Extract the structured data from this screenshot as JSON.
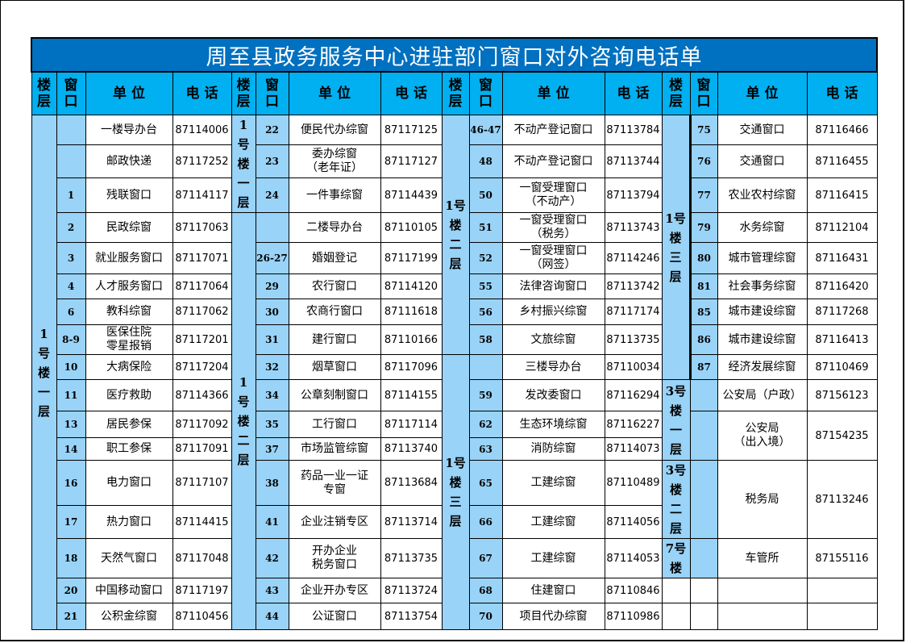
{
  "title": "周至县政务服务中心进驻部门窗口对外咨询电话单",
  "headers": {
    "floor": "楼层",
    "window": "窗口",
    "unit": "单 位",
    "phone": "电 话"
  },
  "colors": {
    "title_bg": "#0070c0",
    "header_bg": "#00b0f0",
    "label_bg": "#99d3f7"
  },
  "sections": [
    {
      "floors": [
        {
          "label": "1号楼一层",
          "span": 17
        }
      ],
      "entries": [
        {
          "window": "",
          "unit": "一楼导办台",
          "phone": "87114006"
        },
        {
          "window": "",
          "unit": "邮政快递",
          "phone": "87117252"
        },
        {
          "window": "1",
          "unit": "残联窗口",
          "phone": "87114117"
        },
        {
          "window": "2",
          "unit": "民政综窗",
          "phone": "87117063"
        },
        {
          "window": "3",
          "unit": "就业服务窗口",
          "phone": "87117071"
        },
        {
          "window": "4",
          "unit": "人才服务窗口",
          "phone": "87117064"
        },
        {
          "window": "6",
          "unit": "教科综窗",
          "phone": "87117062"
        },
        {
          "window": "8-9",
          "unit": "医保住院\n零星报销",
          "phone": "87117201"
        },
        {
          "window": "10",
          "unit": "大病保险",
          "phone": "87117204"
        },
        {
          "window": "11",
          "unit": "医疗救助",
          "phone": "87114366"
        },
        {
          "window": "13",
          "unit": "居民参保",
          "phone": "87117092"
        },
        {
          "window": "14",
          "unit": "职工参保",
          "phone": "87117091"
        },
        {
          "window": "16",
          "unit": "电力窗口",
          "phone": "87117107"
        },
        {
          "window": "17",
          "unit": "热力窗口",
          "phone": "87114415"
        },
        {
          "window": "18",
          "unit": "天然气窗口",
          "phone": "87117048"
        },
        {
          "window": "20",
          "unit": "中国移动窗口",
          "phone": "87117197"
        },
        {
          "window": "21",
          "unit": "公积金综窗",
          "phone": "87110456"
        }
      ]
    },
    {
      "floors": [
        {
          "label": "1号楼一层",
          "span": 3
        },
        {
          "label": "1号楼二层",
          "span": 14
        }
      ],
      "entries": [
        {
          "window": "22",
          "unit": "便民代办综窗",
          "phone": "87117125"
        },
        {
          "window": "23",
          "unit": "委办综窗\n（老年证）",
          "phone": "87117127"
        },
        {
          "window": "24",
          "unit": "一件事综窗",
          "phone": "87114439"
        },
        {
          "window": "",
          "unit": "二楼导办台",
          "phone": "87110105"
        },
        {
          "window": "26-27",
          "unit": "婚姻登记",
          "phone": "87117199"
        },
        {
          "window": "29",
          "unit": "农行窗口",
          "phone": "87114120"
        },
        {
          "window": "30",
          "unit": "农商行窗口",
          "phone": "87111618"
        },
        {
          "window": "31",
          "unit": "建行窗口",
          "phone": "87110166"
        },
        {
          "window": "32",
          "unit": "烟草窗口",
          "phone": "87117096"
        },
        {
          "window": "34",
          "unit": "公章刻制窗口",
          "phone": "87114155"
        },
        {
          "window": "35",
          "unit": "工行窗口",
          "phone": "87117114"
        },
        {
          "window": "37",
          "unit": "市场监管综窗",
          "phone": "87113740"
        },
        {
          "window": "38",
          "unit": "药品一业一证\n专窗",
          "phone": "87113684"
        },
        {
          "window": "41",
          "unit": "企业注销专区",
          "phone": "87113714"
        },
        {
          "window": "42",
          "unit": "开办企业\n税务窗口",
          "phone": "87113735"
        },
        {
          "window": "43",
          "unit": "企业开办专区",
          "phone": "87113724"
        },
        {
          "window": "44",
          "unit": "公证窗口",
          "phone": "87113754"
        }
      ]
    },
    {
      "floors": [
        {
          "label": "1号楼二层",
          "span": 8
        },
        {
          "label": "1号楼三层",
          "span": 9
        }
      ],
      "entries": [
        {
          "window": "46-47",
          "unit": "不动产登记窗口",
          "phone": "87113784"
        },
        {
          "window": "48",
          "unit": "不动产登记窗口",
          "phone": "87113744"
        },
        {
          "window": "50",
          "unit": "一窗受理窗口\n（不动产）",
          "phone": "87113794"
        },
        {
          "window": "51",
          "unit": "一窗受理窗口\n（税务）",
          "phone": "87113743"
        },
        {
          "window": "52",
          "unit": "一窗受理窗口\n（网签）",
          "phone": "87114246"
        },
        {
          "window": "55",
          "unit": "法律咨询窗口",
          "phone": "87113742"
        },
        {
          "window": "56",
          "unit": "乡村振兴综窗",
          "phone": "87117174"
        },
        {
          "window": "58",
          "unit": "文旅综窗",
          "phone": "87113735"
        },
        {
          "window": "",
          "unit": "三楼导办台",
          "phone": "87110034"
        },
        {
          "window": "59",
          "unit": "发改委窗口",
          "phone": "87116294"
        },
        {
          "window": "62",
          "unit": "生态环境综窗",
          "phone": "87116227"
        },
        {
          "window": "63",
          "unit": "消防综窗",
          "phone": "87114073"
        },
        {
          "window": "65",
          "unit": "工建综窗",
          "phone": "87110489"
        },
        {
          "window": "66",
          "unit": "工建综窗",
          "phone": "87114056"
        },
        {
          "window": "67",
          "unit": "工建综窗",
          "phone": "87114053"
        },
        {
          "window": "68",
          "unit": "住建窗口",
          "phone": "87110846"
        },
        {
          "window": "70",
          "unit": "项目代办综窗",
          "phone": "87110986"
        }
      ]
    },
    {
      "floors": [
        {
          "label": "1号楼三层",
          "span": 9
        },
        {
          "label": "3号楼一层",
          "span": 3
        },
        {
          "label": "3号楼二层",
          "span": 2
        },
        {
          "label": "7号楼",
          "span": 1
        },
        {
          "label": "",
          "span": 1,
          "blank": true
        },
        {
          "label": "",
          "span": 1,
          "blank": true
        }
      ],
      "entries": [
        {
          "window": "75",
          "unit": "交通窗口",
          "phone": "87116466"
        },
        {
          "window": "76",
          "unit": "交通窗口",
          "phone": "87116455"
        },
        {
          "window": "77",
          "unit": "农业农村综窗",
          "phone": "87116415"
        },
        {
          "window": "79",
          "unit": "水务综窗",
          "phone": "87112104"
        },
        {
          "window": "80",
          "unit": "城市管理综窗",
          "phone": "87116431"
        },
        {
          "window": "81",
          "unit": "社会事务综窗",
          "phone": "87116420"
        },
        {
          "window": "85",
          "unit": "城市建设综窗",
          "phone": "87117268"
        },
        {
          "window": "86",
          "unit": "城市建设综窗",
          "phone": "87116413"
        },
        {
          "window": "87",
          "unit": "经济发展综窗",
          "phone": "87110469"
        },
        {
          "window": "",
          "unit": "公安局（户政）",
          "phone": "87156123"
        },
        {
          "window": "",
          "unit": "公安局\n（出入境）",
          "phone": "87154235",
          "span": 2
        },
        {
          "window": "",
          "unit": "税务局",
          "phone": "87113246",
          "span": 2
        },
        {
          "window": "",
          "unit": "车管所",
          "phone": "87155116"
        },
        {
          "window": "",
          "unit": "",
          "phone": "",
          "blank": true
        },
        {
          "window": "",
          "unit": "",
          "phone": "",
          "blank": true
        }
      ]
    }
  ]
}
